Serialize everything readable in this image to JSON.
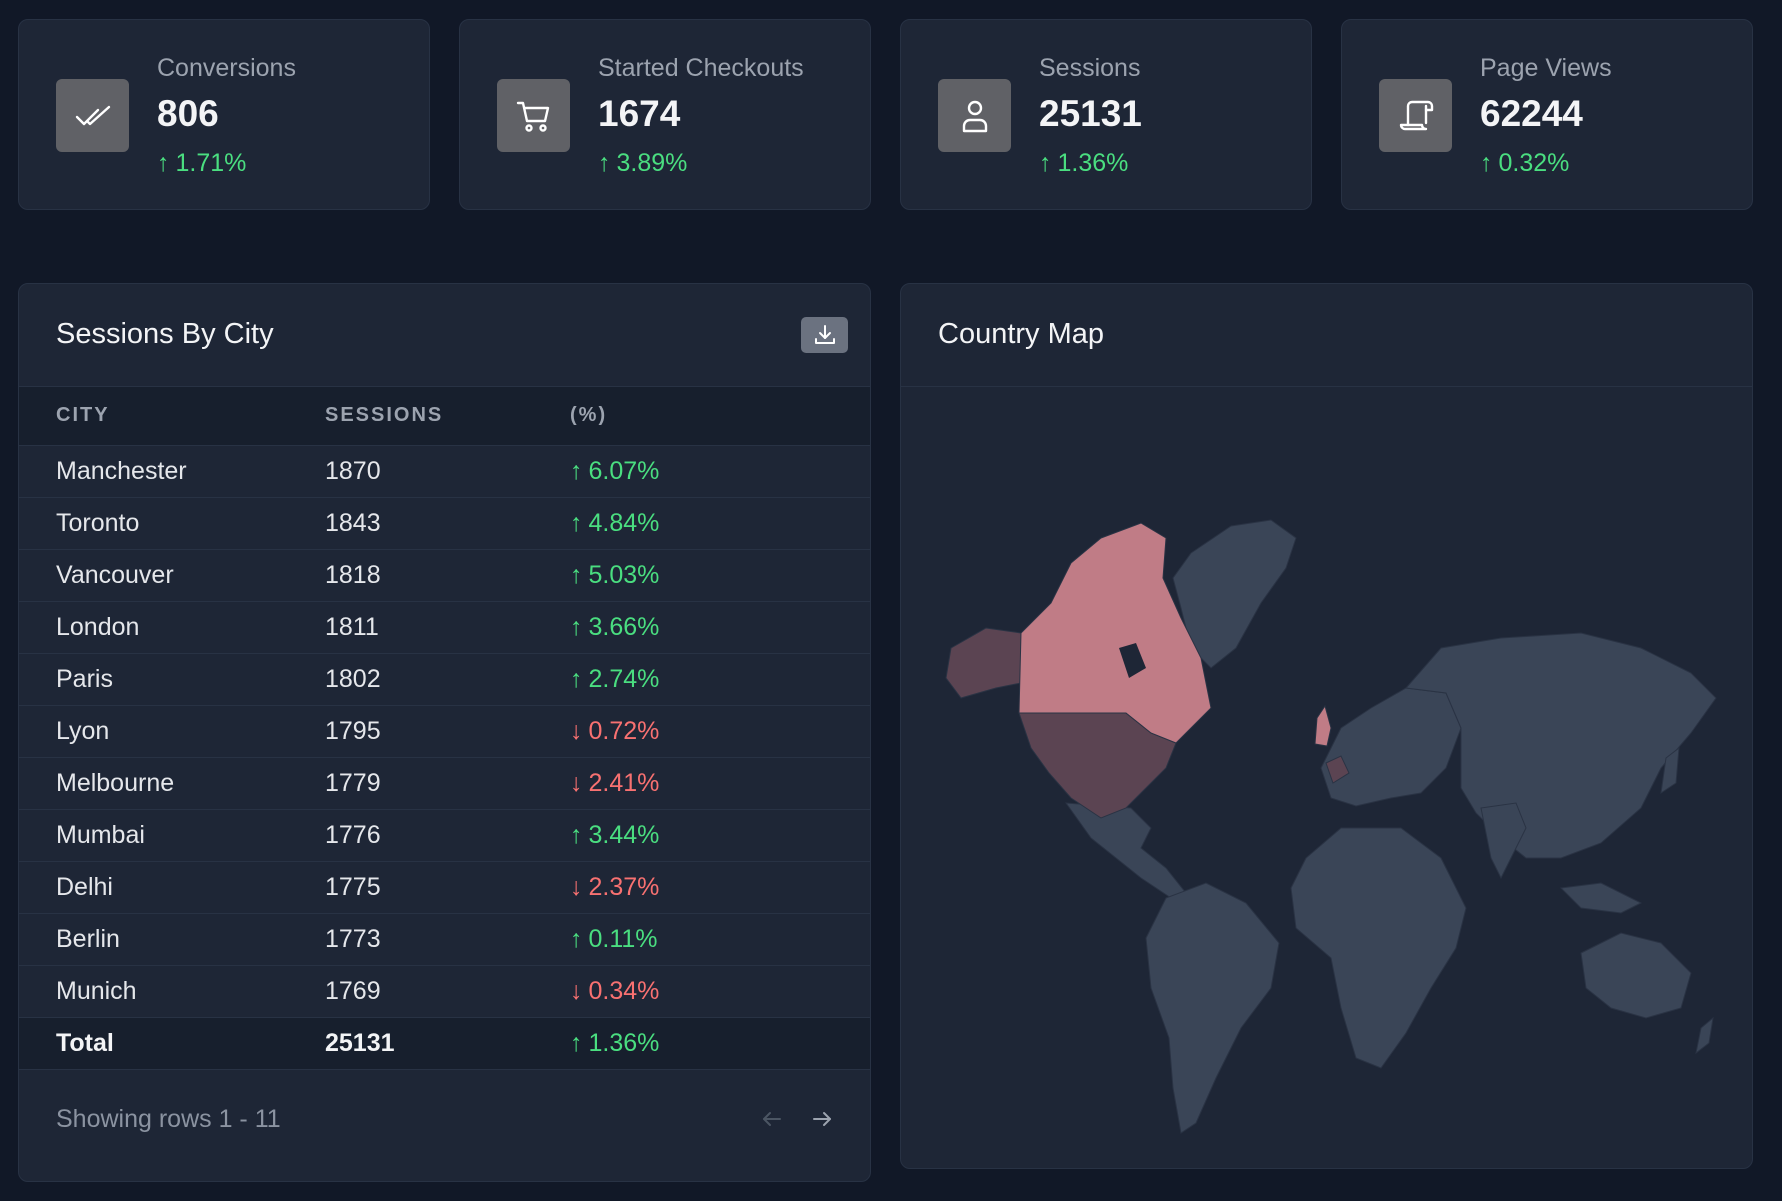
{
  "kpis": [
    {
      "label": "Conversions",
      "value": "806",
      "delta": "1.71%",
      "icon": "double-check-icon",
      "trend": "up"
    },
    {
      "label": "Started Checkouts",
      "value": "1674",
      "delta": "3.89%",
      "icon": "cart-icon",
      "trend": "up"
    },
    {
      "label": "Sessions",
      "value": "25131",
      "delta": "1.36%",
      "icon": "user-icon",
      "trend": "up"
    },
    {
      "label": "Page Views",
      "value": "62244",
      "delta": "0.32%",
      "icon": "scroll-icon",
      "trend": "up"
    }
  ],
  "sessions_table": {
    "title": "Sessions By City",
    "columns": [
      "CITY",
      "SESSIONS",
      "(%)"
    ],
    "rows": [
      {
        "city": "Manchester",
        "sessions": "1870",
        "pct": "6.07%",
        "trend": "up"
      },
      {
        "city": "Toronto",
        "sessions": "1843",
        "pct": "4.84%",
        "trend": "up"
      },
      {
        "city": "Vancouver",
        "sessions": "1818",
        "pct": "5.03%",
        "trend": "up"
      },
      {
        "city": "London",
        "sessions": "1811",
        "pct": "3.66%",
        "trend": "up"
      },
      {
        "city": "Paris",
        "sessions": "1802",
        "pct": "2.74%",
        "trend": "up"
      },
      {
        "city": "Lyon",
        "sessions": "1795",
        "pct": "0.72%",
        "trend": "down"
      },
      {
        "city": "Melbourne",
        "sessions": "1779",
        "pct": "2.41%",
        "trend": "down"
      },
      {
        "city": "Mumbai",
        "sessions": "1776",
        "pct": "3.44%",
        "trend": "up"
      },
      {
        "city": "Delhi",
        "sessions": "1775",
        "pct": "2.37%",
        "trend": "down"
      },
      {
        "city": "Berlin",
        "sessions": "1773",
        "pct": "0.11%",
        "trend": "up"
      },
      {
        "city": "Munich",
        "sessions": "1769",
        "pct": "0.34%",
        "trend": "down"
      }
    ],
    "total": {
      "city": "Total",
      "sessions": "25131",
      "pct": "1.36%",
      "trend": "up"
    },
    "footer": "Showing rows 1 - 11"
  },
  "map": {
    "title": "Country Map"
  },
  "colors": {
    "background": "#111827",
    "card": "#1e2636",
    "up": "#4ade80",
    "down": "#f87171",
    "map_land": "#3a4557",
    "map_highlight": "#c07c86",
    "map_mid": "#5b4452"
  }
}
